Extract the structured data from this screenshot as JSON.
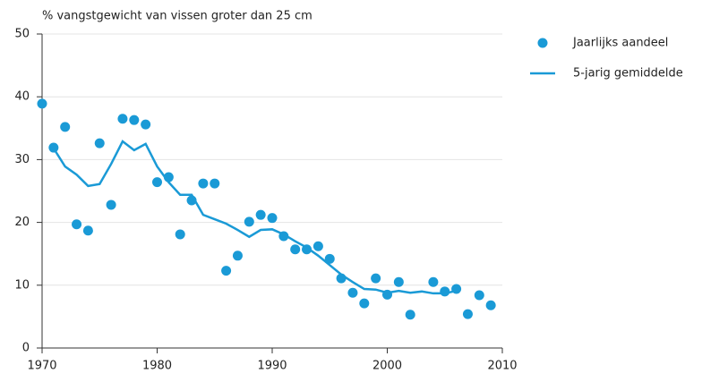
{
  "chart_data": {
    "type": "scatter-line",
    "title": "% vangstgewicht van vissen groter dan 25 cm",
    "xlim": [
      1970,
      2010
    ],
    "xticks": [
      1970,
      1980,
      1990,
      2000,
      2010
    ],
    "ylim": [
      0,
      50
    ],
    "yticks": [
      0,
      10,
      20,
      30,
      40,
      50
    ],
    "grid": true,
    "legend": "right",
    "series": [
      {
        "name": "Jaarlijks aandeel",
        "type": "scatter",
        "color": "#1a9ad6",
        "x": [
          1970,
          1971,
          1972,
          1973,
          1974,
          1975,
          1976,
          1977,
          1978,
          1979,
          1980,
          1981,
          1982,
          1983,
          1984,
          1985,
          1986,
          1987,
          1988,
          1989,
          1990,
          1991,
          1992,
          1993,
          1994,
          1995,
          1996,
          1997,
          1998,
          1999,
          2000,
          2001,
          2002,
          2004,
          2005,
          2006,
          2007,
          2008,
          2009
        ],
        "values": [
          38.9,
          31.9,
          35.2,
          19.7,
          18.7,
          32.6,
          22.8,
          36.5,
          36.3,
          35.6,
          26.4,
          27.2,
          18.1,
          23.5,
          26.2,
          26.2,
          12.3,
          14.7,
          20.1,
          21.2,
          20.7,
          17.8,
          15.7,
          15.7,
          16.2,
          14.2,
          11.1,
          8.8,
          7.1,
          11.1,
          8.5,
          10.5,
          5.3,
          10.5,
          9.0,
          9.4,
          5.4,
          8.4,
          6.8
        ]
      },
      {
        "name": "5-jarig gemiddelde",
        "type": "line",
        "color": "#1a9ad6",
        "x": [
          1971,
          1972,
          1973,
          1974,
          1975,
          1976,
          1977,
          1978,
          1979,
          1980,
          1981,
          1982,
          1983,
          1984,
          1985,
          1986,
          1987,
          1988,
          1989,
          1990,
          1991,
          1992,
          1993,
          1994,
          1995,
          1996,
          1997,
          1998,
          1999,
          2000,
          2001,
          2002,
          2003,
          2004,
          2005,
          2006
        ],
        "values": [
          31.8,
          28.9,
          27.6,
          25.8,
          26.1,
          29.3,
          32.9,
          31.5,
          32.5,
          28.9,
          26.4,
          24.4,
          24.4,
          21.2,
          20.5,
          19.8,
          18.8,
          17.7,
          18.8,
          18.9,
          18.1,
          17.0,
          16.0,
          14.7,
          13.2,
          11.7,
          10.5,
          9.4,
          9.3,
          8.8,
          9.1,
          8.8,
          9.0,
          8.7,
          8.7,
          9.1
        ]
      }
    ]
  }
}
